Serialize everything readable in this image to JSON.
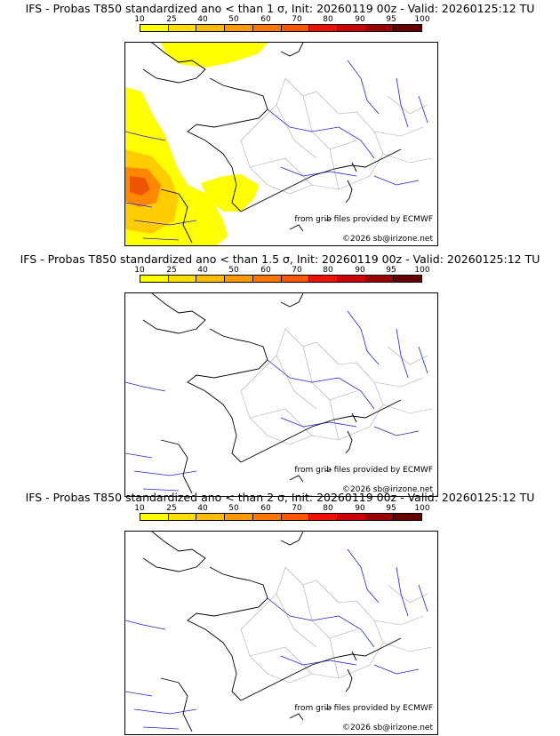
{
  "colorbar": {
    "ticks": [
      "10",
      "25",
      "40",
      "50",
      "60",
      "70",
      "80",
      "90",
      "95",
      "100"
    ],
    "colors": [
      "#ffff00",
      "#ffdd00",
      "#ffbb00",
      "#ff9900",
      "#ff7700",
      "#ff5500",
      "#ee1100",
      "#cc0000",
      "#990000",
      "#660000"
    ]
  },
  "panels": [
    {
      "title": "IFS - Probas T850  standardized ano < than 1 σ, Init: 20260119 00z - Valid: 20260125:12 TU",
      "source": "from grib files provided by ECMWF",
      "copyright": "©2026 sb@irizone.net"
    },
    {
      "title": "IFS - Probas T850  standardized ano < than 1.5 σ, Init: 20260119 00z - Valid: 20260125:12 TU",
      "source": "from grib files provided by ECMWF",
      "copyright": "©2026 sb@irizone.net"
    },
    {
      "title": "IFS - Probas T850  standardized ano < than 2 σ, Init: 20260119 00z - Valid: 20260125:12 TU",
      "source": "from grib files provided by ECMWF",
      "copyright": "©2026 sb@irizone.net"
    }
  ],
  "colors": {
    "coast": "#000000",
    "river": "#2222dd",
    "border": "#aaaaaa",
    "p_low": "#ffff00",
    "p_mid": "#ffcc00",
    "p_high": "#ff8800",
    "p_top": "#ee5500"
  }
}
